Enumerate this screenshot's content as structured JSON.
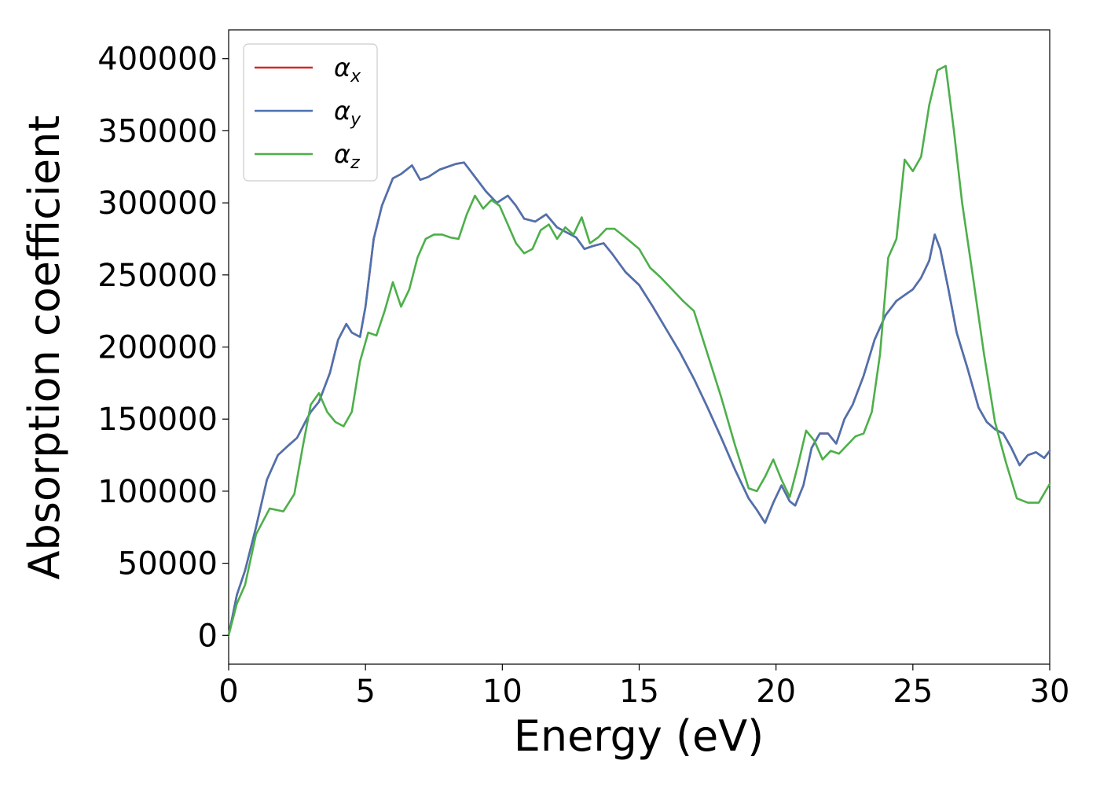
{
  "chart_data": {
    "type": "line",
    "title": "",
    "xlabel": "Energy (eV)",
    "ylabel": "Absorption coefficient",
    "xlim": [
      0,
      30
    ],
    "ylim": [
      -20000,
      420000
    ],
    "xticks": [
      0,
      5,
      10,
      15,
      20,
      25,
      30
    ],
    "yticks": [
      0,
      50000,
      100000,
      150000,
      200000,
      250000,
      300000,
      350000,
      400000
    ],
    "xtick_labels": [
      "0",
      "5",
      "10",
      "15",
      "20",
      "25",
      "30"
    ],
    "ytick_labels": [
      "0",
      "50000",
      "100000",
      "150000",
      "200000",
      "250000",
      "300000",
      "350000",
      "400000"
    ],
    "grid": false,
    "legend_position": "top-left",
    "series": [
      {
        "name": "α",
        "subscript": "x",
        "color": "#d62728",
        "x": [
          0,
          0.3,
          0.6,
          1.0,
          1.4,
          1.8,
          2.2,
          2.5,
          2.8,
          3.0,
          3.3,
          3.7,
          4.0,
          4.3,
          4.5,
          4.8,
          5.0,
          5.3,
          5.6,
          6.0,
          6.3,
          6.7,
          7.0,
          7.3,
          7.7,
          8.0,
          8.3,
          8.6,
          9.0,
          9.4,
          9.8,
          10.2,
          10.5,
          10.8,
          11.2,
          11.6,
          12.0,
          12.3,
          12.7,
          13.0,
          13.3,
          13.7,
          14.0,
          14.5,
          15.0,
          15.5,
          16.0,
          16.5,
          17.0,
          17.5,
          18.0,
          18.5,
          19.0,
          19.3,
          19.6,
          19.9,
          20.2,
          20.5,
          20.7,
          21.0,
          21.3,
          21.6,
          21.9,
          22.2,
          22.5,
          22.8,
          23.2,
          23.6,
          24.0,
          24.4,
          24.7,
          25.0,
          25.3,
          25.6,
          25.8,
          26.0,
          26.3,
          26.6,
          27.0,
          27.4,
          27.7,
          28.0,
          28.3,
          28.6,
          28.9,
          29.2,
          29.5,
          29.8,
          30.0
        ],
        "values": [
          0,
          28000,
          45000,
          75000,
          108000,
          125000,
          132000,
          137000,
          148000,
          155000,
          162000,
          182000,
          205000,
          216000,
          210000,
          207000,
          228000,
          275000,
          298000,
          317000,
          320000,
          326000,
          316000,
          318000,
          323000,
          325000,
          327000,
          328000,
          318000,
          308000,
          300000,
          305000,
          298000,
          289000,
          287000,
          292000,
          283000,
          280000,
          276000,
          268000,
          270000,
          272000,
          265000,
          252000,
          243000,
          228000,
          212000,
          196000,
          178000,
          158000,
          137000,
          115000,
          95000,
          87000,
          78000,
          92000,
          104000,
          93000,
          90000,
          104000,
          130000,
          140000,
          140000,
          133000,
          150000,
          160000,
          180000,
          205000,
          222000,
          232000,
          236000,
          240000,
          248000,
          260000,
          278000,
          268000,
          240000,
          210000,
          185000,
          158000,
          148000,
          143000,
          140000,
          130000,
          118000,
          125000,
          127000,
          123000,
          128000
        ]
      },
      {
        "name": "α",
        "subscript": "y",
        "color": "#4c72b0",
        "x": [
          0,
          0.3,
          0.6,
          1.0,
          1.4,
          1.8,
          2.2,
          2.5,
          2.8,
          3.0,
          3.3,
          3.7,
          4.0,
          4.3,
          4.5,
          4.8,
          5.0,
          5.3,
          5.6,
          6.0,
          6.3,
          6.7,
          7.0,
          7.3,
          7.7,
          8.0,
          8.3,
          8.6,
          9.0,
          9.4,
          9.8,
          10.2,
          10.5,
          10.8,
          11.2,
          11.6,
          12.0,
          12.3,
          12.7,
          13.0,
          13.3,
          13.7,
          14.0,
          14.5,
          15.0,
          15.5,
          16.0,
          16.5,
          17.0,
          17.5,
          18.0,
          18.5,
          19.0,
          19.3,
          19.6,
          19.9,
          20.2,
          20.5,
          20.7,
          21.0,
          21.3,
          21.6,
          21.9,
          22.2,
          22.5,
          22.8,
          23.2,
          23.6,
          24.0,
          24.4,
          24.7,
          25.0,
          25.3,
          25.6,
          25.8,
          26.0,
          26.3,
          26.6,
          27.0,
          27.4,
          27.7,
          28.0,
          28.3,
          28.6,
          28.9,
          29.2,
          29.5,
          29.8,
          30.0
        ],
        "values": [
          0,
          28000,
          45000,
          75000,
          108000,
          125000,
          132000,
          137000,
          148000,
          155000,
          162000,
          182000,
          205000,
          216000,
          210000,
          207000,
          228000,
          275000,
          298000,
          317000,
          320000,
          326000,
          316000,
          318000,
          323000,
          325000,
          327000,
          328000,
          318000,
          308000,
          300000,
          305000,
          298000,
          289000,
          287000,
          292000,
          283000,
          280000,
          276000,
          268000,
          270000,
          272000,
          265000,
          252000,
          243000,
          228000,
          212000,
          196000,
          178000,
          158000,
          137000,
          115000,
          95000,
          87000,
          78000,
          92000,
          104000,
          93000,
          90000,
          104000,
          130000,
          140000,
          140000,
          133000,
          150000,
          160000,
          180000,
          205000,
          222000,
          232000,
          236000,
          240000,
          248000,
          260000,
          278000,
          268000,
          240000,
          210000,
          185000,
          158000,
          148000,
          143000,
          140000,
          130000,
          118000,
          125000,
          127000,
          123000,
          128000
        ]
      },
      {
        "name": "α",
        "subscript": "z",
        "color": "#4daf4a",
        "x": [
          0,
          0.3,
          0.6,
          1.0,
          1.5,
          2.0,
          2.4,
          2.7,
          3.0,
          3.3,
          3.6,
          3.9,
          4.2,
          4.5,
          4.8,
          5.1,
          5.4,
          5.7,
          6.0,
          6.3,
          6.6,
          6.9,
          7.2,
          7.5,
          7.8,
          8.1,
          8.4,
          8.7,
          9.0,
          9.3,
          9.6,
          9.9,
          10.2,
          10.5,
          10.8,
          11.1,
          11.4,
          11.7,
          12.0,
          12.3,
          12.6,
          12.9,
          13.2,
          13.5,
          13.8,
          14.1,
          14.5,
          15.0,
          15.4,
          15.8,
          16.2,
          16.6,
          17.0,
          17.5,
          18.0,
          18.5,
          19.0,
          19.3,
          19.6,
          19.9,
          20.2,
          20.5,
          20.8,
          21.1,
          21.4,
          21.7,
          22.0,
          22.3,
          22.6,
          22.9,
          23.2,
          23.5,
          23.8,
          24.1,
          24.4,
          24.7,
          25.0,
          25.3,
          25.6,
          25.9,
          26.2,
          26.5,
          26.8,
          27.2,
          27.6,
          28.0,
          28.4,
          28.8,
          29.2,
          29.6,
          30.0
        ],
        "values": [
          0,
          22000,
          35000,
          70000,
          88000,
          86000,
          98000,
          130000,
          160000,
          168000,
          155000,
          148000,
          145000,
          155000,
          190000,
          210000,
          208000,
          225000,
          245000,
          228000,
          240000,
          262000,
          275000,
          278000,
          278000,
          276000,
          275000,
          292000,
          305000,
          296000,
          302000,
          298000,
          285000,
          272000,
          265000,
          268000,
          281000,
          285000,
          275000,
          283000,
          278000,
          290000,
          272000,
          276000,
          282000,
          282000,
          276000,
          268000,
          255000,
          248000,
          240000,
          232000,
          225000,
          195000,
          165000,
          132000,
          102000,
          100000,
          110000,
          122000,
          108000,
          96000,
          118000,
          142000,
          135000,
          122000,
          128000,
          126000,
          132000,
          138000,
          140000,
          155000,
          195000,
          262000,
          275000,
          330000,
          322000,
          332000,
          368000,
          392000,
          395000,
          350000,
          300000,
          248000,
          195000,
          148000,
          120000,
          95000,
          92000,
          92000,
          105000
        ]
      }
    ]
  }
}
